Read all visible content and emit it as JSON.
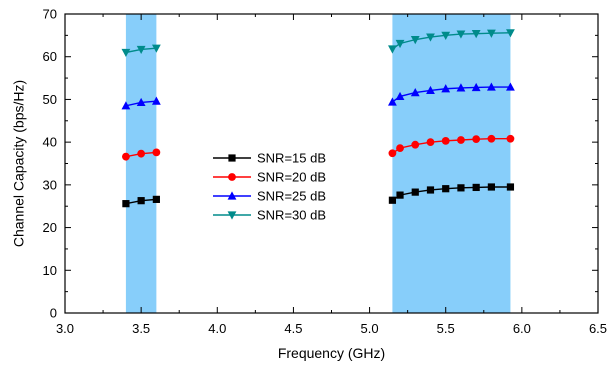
{
  "chart_data": {
    "type": "line",
    "title": "",
    "xlabel": "Frequency (GHz)",
    "ylabel": "Channel Capacity (bps/Hz)",
    "xlim": [
      3.0,
      6.5
    ],
    "ylim": [
      0,
      70
    ],
    "xticks": [
      "3.0",
      "3.5",
      "4.0",
      "4.5",
      "5.0",
      "5.5",
      "6.0",
      "6.5"
    ],
    "yticks": [
      "0",
      "10",
      "20",
      "30",
      "40",
      "50",
      "60",
      "70"
    ],
    "grid": false,
    "legend_position": "center",
    "shaded_bands": [
      {
        "x_start": 3.4,
        "x_end": 3.6,
        "color": "#87cefa"
      },
      {
        "x_start": 5.15,
        "x_end": 5.925,
        "color": "#87cefa"
      }
    ],
    "series": [
      {
        "name": "SNR=15 dB",
        "color": "#000000",
        "marker": "square",
        "segments": [
          {
            "x": [
              3.4,
              3.5,
              3.6
            ],
            "y": [
              25.6,
              26.3,
              26.6
            ]
          },
          {
            "x": [
              5.15,
              5.2,
              5.3,
              5.4,
              5.5,
              5.6,
              5.7,
              5.8,
              5.925
            ],
            "y": [
              26.4,
              27.6,
              28.3,
              28.8,
              29.1,
              29.3,
              29.4,
              29.5,
              29.5
            ]
          }
        ]
      },
      {
        "name": "SNR=20 dB",
        "color": "#ff0000",
        "marker": "circle",
        "segments": [
          {
            "x": [
              3.4,
              3.5,
              3.6
            ],
            "y": [
              36.6,
              37.3,
              37.6
            ]
          },
          {
            "x": [
              5.15,
              5.2,
              5.3,
              5.4,
              5.5,
              5.6,
              5.7,
              5.8,
              5.925
            ],
            "y": [
              37.4,
              38.6,
              39.4,
              40.0,
              40.3,
              40.5,
              40.7,
              40.8,
              40.8
            ]
          }
        ]
      },
      {
        "name": "SNR=25 dB",
        "color": "#0000ff",
        "marker": "triangle-up",
        "segments": [
          {
            "x": [
              3.4,
              3.5,
              3.6
            ],
            "y": [
              48.5,
              49.3,
              49.6
            ]
          },
          {
            "x": [
              5.15,
              5.2,
              5.3,
              5.4,
              5.5,
              5.6,
              5.7,
              5.8,
              5.925
            ],
            "y": [
              49.4,
              50.7,
              51.6,
              52.1,
              52.5,
              52.7,
              52.8,
              52.9,
              52.9
            ]
          }
        ]
      },
      {
        "name": "SNR=30 dB",
        "color": "#008b8b",
        "marker": "triangle-down",
        "segments": [
          {
            "x": [
              3.4,
              3.5,
              3.6
            ],
            "y": [
              61.0,
              61.7,
              62.0
            ]
          },
          {
            "x": [
              5.15,
              5.2,
              5.3,
              5.4,
              5.5,
              5.6,
              5.7,
              5.8,
              5.925
            ],
            "y": [
              61.8,
              63.1,
              64.0,
              64.6,
              65.0,
              65.3,
              65.4,
              65.5,
              65.6
            ]
          }
        ]
      }
    ]
  }
}
